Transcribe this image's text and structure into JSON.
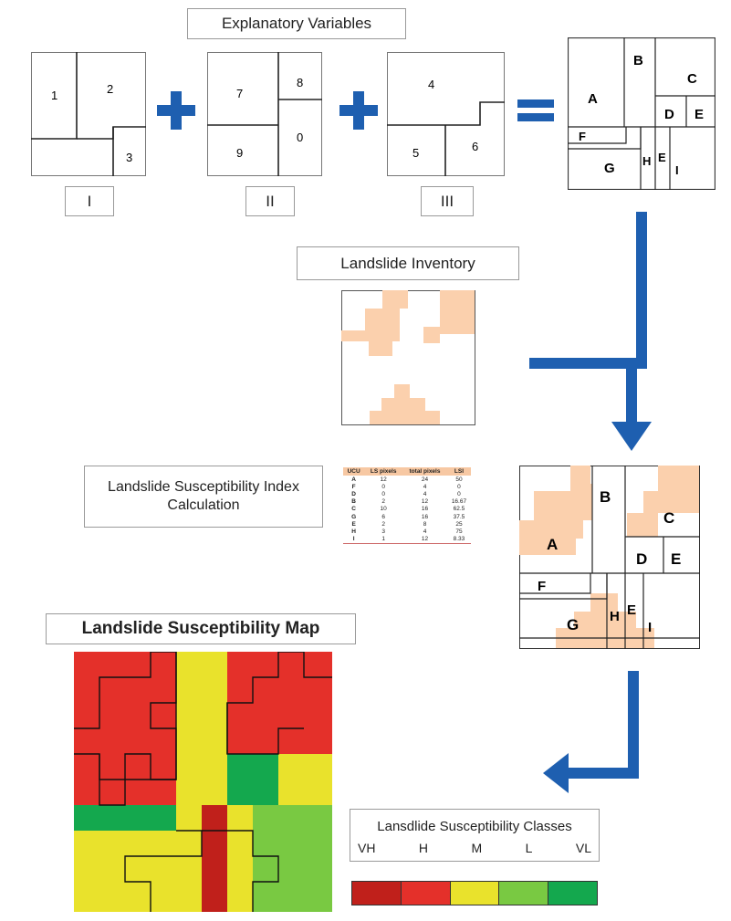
{
  "labels": {
    "explanatory_variables": "Explanatory Variables",
    "landslide_inventory": "Landslide Inventory",
    "lsi_calc": "Landslide Susceptibility Index Calculation",
    "susceptibility_map": "Landslide Susceptibility Map",
    "classes_title": "Lansdlide Susceptibility Classes"
  },
  "factor_maps": [
    {
      "name": "I",
      "units": [
        "1",
        "2",
        "3"
      ]
    },
    {
      "name": "II",
      "units": [
        "7",
        "8",
        "9",
        "0"
      ]
    },
    {
      "name": "III",
      "units": [
        "4",
        "5",
        "6"
      ]
    }
  ],
  "ucu_labels": [
    "A",
    "B",
    "C",
    "D",
    "E",
    "F",
    "G",
    "H",
    "E",
    "I"
  ],
  "lsi_table": {
    "headers": [
      "UCU",
      "LS pixels",
      "total pixels",
      "LSI"
    ],
    "rows": [
      [
        "A",
        "12",
        "24",
        "50"
      ],
      [
        "F",
        "0",
        "4",
        "0"
      ],
      [
        "D",
        "0",
        "4",
        "0"
      ],
      [
        "B",
        "2",
        "12",
        "16.67"
      ],
      [
        "C",
        "10",
        "16",
        "62.5"
      ],
      [
        "G",
        "6",
        "16",
        "37.5"
      ],
      [
        "E",
        "2",
        "8",
        "25"
      ],
      [
        "H",
        "3",
        "4",
        "75"
      ],
      [
        "I",
        "1",
        "12",
        "8.33"
      ]
    ]
  },
  "classes": [
    {
      "label": "VH",
      "color": "#c0201b"
    },
    {
      "label": "H",
      "color": "#e4302a"
    },
    {
      "label": "M",
      "color": "#e9e22c"
    },
    {
      "label": "L",
      "color": "#79c942"
    },
    {
      "label": "VL",
      "color": "#14a84e"
    }
  ],
  "colors": {
    "arrow_blue": "#1e5fb0",
    "landslide_fill": "#fbd0ad"
  }
}
